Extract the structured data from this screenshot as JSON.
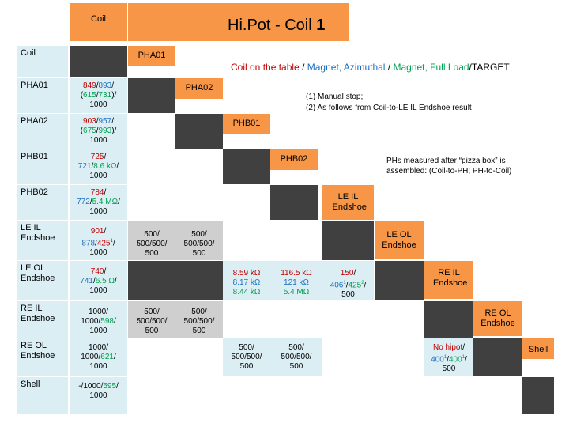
{
  "title": {
    "text": "Hi.Pot - Coil ",
    "number": "1"
  },
  "corner_label": "Coil",
  "row_labels": [
    "Coil",
    "PHA01",
    "PHA02",
    "PHB01",
    "PHB02",
    "LE IL Endshoe",
    "LE OL Endshoe",
    "RE IL Endshoe",
    "RE OL Endshoe",
    "Shell"
  ],
  "diag_labels": [
    "PHA01",
    "PHA02",
    "PHB01",
    "PHB02",
    "LE IL Endshoe",
    "LE OL Endshoe",
    "RE IL Endshoe",
    "RE OL Endshoe",
    "Shell"
  ],
  "legend": {
    "p1": "Coil on the table",
    "s1": " / ",
    "p2": "Magnet, Azimuthal",
    "s2": " / ",
    "p3": "Magnet, Full Load",
    "s3": "/",
    "p4": "TARGET"
  },
  "notes": {
    "n1": "(1) Manual stop;",
    "n2": "(2) As follows from Coil-to-LE IL Endshoe result",
    "n3": "PHs measured after “pizza box” is",
    "n4": "assembled: (Coil-to-PH; PH-to-Coil)"
  },
  "cells": {
    "pha01": {
      "a": "849",
      "b": "893",
      "c": "615",
      "d": "731",
      "e": "1000"
    },
    "pha02": {
      "a": "903",
      "b": "957",
      "c": "675",
      "d": "993",
      "e": "1000"
    },
    "phb01": {
      "a": "725",
      "b": "721",
      "c": "8.6 kΩ",
      "e": "1000"
    },
    "phb02": {
      "a": "784",
      "b": "772",
      "c": "5.4 MΩ",
      "e": "1000"
    },
    "leil": {
      "a": "901",
      "b": "878",
      "c": "425",
      "sup": "1",
      "e": "1000"
    },
    "leol": {
      "a": "740",
      "b": "741",
      "c": "6.5 Ω",
      "e": "1000"
    },
    "reil": {
      "a": "1000",
      "b": "1000",
      "c": "598",
      "e": "1000"
    },
    "reol": {
      "a": "1000",
      "b": "1000",
      "c": "621",
      "e": "1000"
    },
    "shell": {
      "a": "-",
      "b": "1000",
      "c": "595",
      "e": "1000"
    },
    "leil_pha": {
      "l1": "500/",
      "l2": "500/500/",
      "l3": "500"
    },
    "leil_phb": {
      "l1": "500/",
      "l2": "500/500/",
      "l3": "500"
    },
    "reil_pha": {
      "l1": "500/",
      "l2": "500/500/",
      "l3": "500"
    },
    "reil_phb": {
      "l1": "500/",
      "l2": "500/500/",
      "l3": "500"
    },
    "leol_leil": {
      "a": "8.59 kΩ",
      "b": "8.17 kΩ",
      "c": "8.44 kΩ"
    },
    "leol_leol": {
      "a": "116.5 kΩ",
      "b": "121 kΩ",
      "c": "5.4 MΩ"
    },
    "leol_reil": {
      "a": "150",
      "b": "406",
      "sb": "1",
      "c": "425",
      "sc": "2",
      "e": "500"
    },
    "reol_leil": {
      "l1": "500/",
      "l2": "500/500/",
      "l3": "500"
    },
    "reol_leol": {
      "l1": "500/",
      "l2": "500/500/",
      "l3": "500"
    },
    "reol_reil": {
      "a": "No hipot",
      "b": "400",
      "sb": "1",
      "c": "400",
      "sc": "1",
      "e": "500"
    }
  },
  "colors": {
    "label_bg": "#dbeef4",
    "dark": "#404040",
    "orange": "#f79646",
    "red": "#c00000",
    "green": "#00a050",
    "blue": "#1f6fbf"
  }
}
